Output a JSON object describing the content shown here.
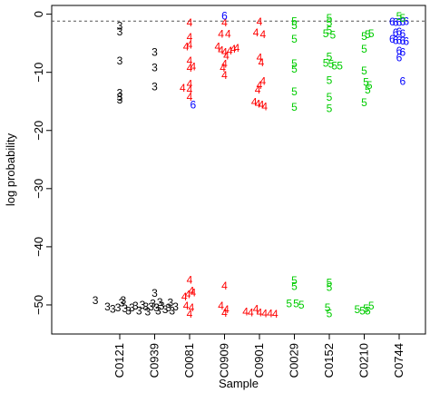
{
  "chart_data": {
    "type": "scatter",
    "marker": "symbol-digits",
    "xlabel": "Sample",
    "ylabel": "log probability",
    "categories": [
      "C0121",
      "C0939",
      "C0081",
      "C0909",
      "C0901",
      "C0029",
      "C0152",
      "C0210",
      "C0744"
    ],
    "ylim": [
      -55,
      1.5
    ],
    "yticks": [
      0,
      -10,
      -20,
      -30,
      -40,
      -50
    ],
    "ytick_labels": [
      "0",
      "−10",
      "−20",
      "−30",
      "−40",
      "−50"
    ],
    "reference_line": {
      "y": -1.2,
      "style": "dashed"
    },
    "colors": {
      "3": "#000000",
      "4": "#ff0000",
      "5": "#00cc00",
      "6": "#0000ff"
    },
    "series": [
      {
        "symbol": "3",
        "color": "#000000",
        "points": [
          [
            0,
            -2
          ],
          [
            0,
            -3
          ],
          [
            0,
            -8
          ],
          [
            0,
            -13.6
          ],
          [
            0,
            -14.3
          ],
          [
            0,
            -14.7
          ],
          [
            -0.7,
            -49.2
          ],
          [
            -0.35,
            -50.3
          ],
          [
            -0.2,
            -50.7
          ],
          [
            -0.05,
            -50.5
          ],
          [
            0.05,
            -49.6
          ],
          [
            0.1,
            -49.2
          ],
          [
            0.15,
            -50.6
          ],
          [
            0.25,
            -51
          ],
          [
            0.35,
            -50.5
          ],
          [
            0.45,
            -50.2
          ],
          [
            0.55,
            -51
          ],
          [
            1,
            -6.5
          ],
          [
            1,
            -9.2
          ],
          [
            1,
            -12.5
          ],
          [
            0.65,
            -50
          ],
          [
            0.75,
            -50.3
          ],
          [
            0.8,
            -51.2
          ],
          [
            0.9,
            -50.3
          ],
          [
            0.95,
            -49.8
          ],
          [
            1,
            -48
          ],
          [
            1.05,
            -50.5
          ],
          [
            1.1,
            -51
          ],
          [
            1.15,
            -49.5
          ],
          [
            1.2,
            -50.2
          ],
          [
            1.3,
            -50.8
          ],
          [
            1.4,
            -50.5
          ],
          [
            1.45,
            -49.6
          ],
          [
            1.5,
            -51
          ],
          [
            1.6,
            -50.3
          ]
        ]
      },
      {
        "symbol": "4",
        "color": "#ff0000",
        "points": [
          [
            2,
            -1.5
          ],
          [
            2,
            -4
          ],
          [
            2,
            -5.3
          ],
          [
            2,
            -8
          ],
          [
            2,
            -9.3
          ],
          [
            2,
            -12
          ],
          [
            2,
            -13
          ],
          [
            2,
            -14.3
          ],
          [
            1.9,
            -5.6
          ],
          [
            1.8,
            -12.7
          ],
          [
            2.1,
            -9
          ],
          [
            2,
            -45.7
          ],
          [
            1.95,
            -48.2
          ],
          [
            1.85,
            -48.6
          ],
          [
            2.05,
            -47.6
          ],
          [
            2.1,
            -47.9
          ],
          [
            1.9,
            -50.2
          ],
          [
            2.05,
            -50.5
          ],
          [
            2,
            -51.6
          ],
          [
            3,
            -1.5
          ],
          [
            2.9,
            -3.4
          ],
          [
            3.1,
            -3.4
          ],
          [
            2.8,
            -5.6
          ],
          [
            2.9,
            -6.2
          ],
          [
            3,
            -6.5
          ],
          [
            3.05,
            -7.2
          ],
          [
            3.15,
            -6.3
          ],
          [
            3.25,
            -6
          ],
          [
            3.35,
            -5.8
          ],
          [
            3,
            -8.6
          ],
          [
            2.95,
            -9.3
          ],
          [
            3,
            -10.5
          ],
          [
            3,
            -46.7
          ],
          [
            2.9,
            -50.2
          ],
          [
            3.05,
            -50.8
          ],
          [
            3,
            -51.4
          ],
          [
            4,
            -1.3
          ],
          [
            3.9,
            -3.2
          ],
          [
            4.1,
            -3.5
          ],
          [
            4,
            -7.5
          ],
          [
            4.05,
            -8.3
          ],
          [
            4.1,
            -11.5
          ],
          [
            4,
            -12.2
          ],
          [
            3.95,
            -13
          ],
          [
            3.85,
            -15.1
          ],
          [
            3.95,
            -15.4
          ],
          [
            4.05,
            -15.6
          ],
          [
            4.15,
            -15.9
          ],
          [
            3.6,
            -51.2
          ],
          [
            3.75,
            -51.3
          ],
          [
            3.9,
            -50.7
          ],
          [
            4,
            -51.3
          ],
          [
            4.15,
            -51.5
          ],
          [
            4.3,
            -51.5
          ],
          [
            4.45,
            -51.6
          ]
        ]
      },
      {
        "symbol": "5",
        "color": "#00cc00",
        "points": [
          [
            5,
            -1.2
          ],
          [
            5,
            -1.9
          ],
          [
            5,
            -4.3
          ],
          [
            5,
            -8.5
          ],
          [
            5,
            -9.4
          ],
          [
            5,
            -13.3
          ],
          [
            5,
            -16
          ],
          [
            5,
            -45.8
          ],
          [
            5,
            -46.8
          ],
          [
            4.85,
            -49.8
          ],
          [
            5.05,
            -49.8
          ],
          [
            5.2,
            -50
          ],
          [
            6,
            -0.7
          ],
          [
            6,
            -1.5
          ],
          [
            6,
            -2.8
          ],
          [
            5.9,
            -3.3
          ],
          [
            6.1,
            -3.6
          ],
          [
            6,
            -7.3
          ],
          [
            5.9,
            -8.4
          ],
          [
            6.05,
            -8.6
          ],
          [
            6.15,
            -8.9
          ],
          [
            6.3,
            -8.9
          ],
          [
            6,
            -11.4
          ],
          [
            6,
            -14.3
          ],
          [
            6,
            -16.2
          ],
          [
            6,
            -46.2
          ],
          [
            6,
            -47
          ],
          [
            5.95,
            -50.5
          ],
          [
            6,
            -51.5
          ],
          [
            7,
            -3.8
          ],
          [
            7.1,
            -3.5
          ],
          [
            7.2,
            -3.3
          ],
          [
            7,
            -6
          ],
          [
            7,
            -9.7
          ],
          [
            7.05,
            -11.7
          ],
          [
            7.15,
            -12.2
          ],
          [
            7.1,
            -13
          ],
          [
            7,
            -15.2
          ],
          [
            6.8,
            -50.8
          ],
          [
            6.95,
            -51
          ],
          [
            7.05,
            -50.6
          ],
          [
            7.1,
            -51
          ],
          [
            7.2,
            -50.2
          ]
        ]
      },
      {
        "symbol": "6",
        "color": "#0000ff",
        "points": [
          [
            3,
            -0.3
          ],
          [
            2.1,
            -15.6
          ],
          [
            7.8,
            -1.3
          ],
          [
            7.9,
            -1.4
          ],
          [
            8,
            -1.4
          ],
          [
            8.1,
            -1.3
          ],
          [
            8.2,
            -1.2
          ],
          [
            8,
            -3
          ],
          [
            7.9,
            -3.2
          ],
          [
            8.1,
            -3.3
          ],
          [
            7.8,
            -4.3
          ],
          [
            7.9,
            -4.5
          ],
          [
            8,
            -4.5
          ],
          [
            8.1,
            -4.6
          ],
          [
            8.2,
            -4.7
          ],
          [
            8,
            -6.3
          ],
          [
            8.1,
            -6.5
          ],
          [
            8,
            -7.5
          ],
          [
            8.1,
            -11.5
          ]
        ]
      },
      {
        "symbol": "5",
        "color": "#00cc00",
        "points": [
          [
            8,
            -0.4
          ],
          [
            8.1,
            -0.7
          ]
        ]
      }
    ]
  }
}
